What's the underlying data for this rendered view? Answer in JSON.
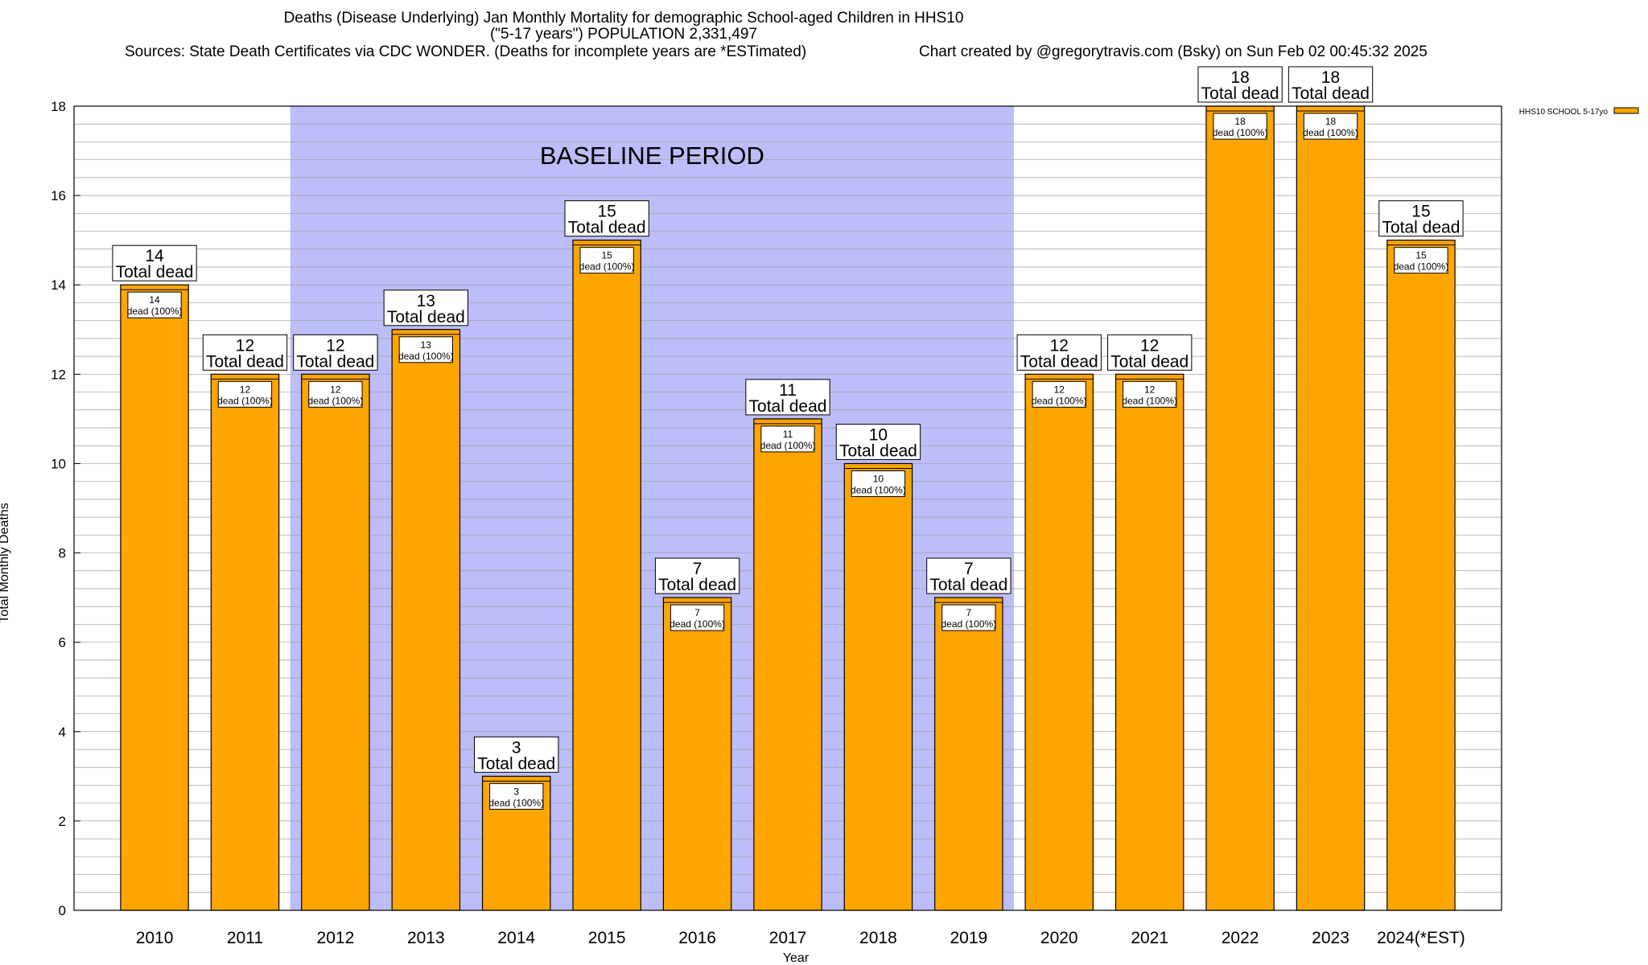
{
  "title": {
    "line1": "Deaths (Disease Underlying) Jan Monthly Mortality for demographic School-aged Children in HHS10",
    "line2": "(\"5-17 years\") POPULATION 2,331,497",
    "sources": "Sources: State Death Certificates via CDC WONDER. (Deaths for incomplete years are *ESTimated)",
    "credit": "Chart created by @gregorytravis.com (Bsky) on Sun Feb 02 00:45:32 2025"
  },
  "chart_data": {
    "type": "bar",
    "categories": [
      "2010",
      "2011",
      "2012",
      "2013",
      "2014",
      "2015",
      "2016",
      "2017",
      "2018",
      "2019",
      "2020",
      "2021",
      "2022",
      "2023",
      "2024(*EST)"
    ],
    "series": [
      {
        "name": "HHS10 SCHOOL 5-17yo",
        "values": [
          14,
          12,
          12,
          13,
          3,
          15,
          7,
          11,
          10,
          7,
          12,
          12,
          18,
          18,
          15
        ],
        "color": "#FFA500"
      }
    ],
    "top_labels": [
      "14\nTotal dead",
      "12\nTotal dead",
      "12\nTotal dead",
      "13\nTotal dead",
      "3\nTotal dead",
      "15\nTotal dead",
      "7\nTotal dead",
      "11\nTotal dead",
      "10\nTotal dead",
      "7\nTotal dead",
      "12\nTotal dead",
      "12\nTotal dead",
      "18\nTotal dead",
      "18\nTotal dead",
      "15\nTotal dead"
    ],
    "inner_labels": [
      "14\ndead (100%)",
      "12\ndead (100%)",
      "12\ndead (100%)",
      "13\ndead (100%)",
      "3\ndead (100%)",
      "15\ndead (100%)",
      "7\ndead (100%)",
      "11\ndead (100%)",
      "10\ndead (100%)",
      "7\ndead (100%)",
      "12\ndead (100%)",
      "12\ndead (100%)",
      "18\ndead (100%)",
      "18\ndead (100%)",
      "15\ndead (100%)"
    ],
    "xlabel": "Year",
    "ylabel": "Total Monthly Deaths",
    "ylim": [
      0,
      18
    ],
    "yticks": [
      "0",
      "2",
      "4",
      "6",
      "8",
      "10",
      "12",
      "14",
      "16",
      "18"
    ],
    "grid": true,
    "legend_position": "top-right",
    "baseline_region": {
      "label": "BASELINE PERIOD",
      "from_category": "2012",
      "to_category": "2019",
      "color": "#BDBDF9"
    },
    "colors": {
      "bar": "#FFA500",
      "bar_outline": "#000000",
      "grid": "#A0A0A0"
    }
  }
}
